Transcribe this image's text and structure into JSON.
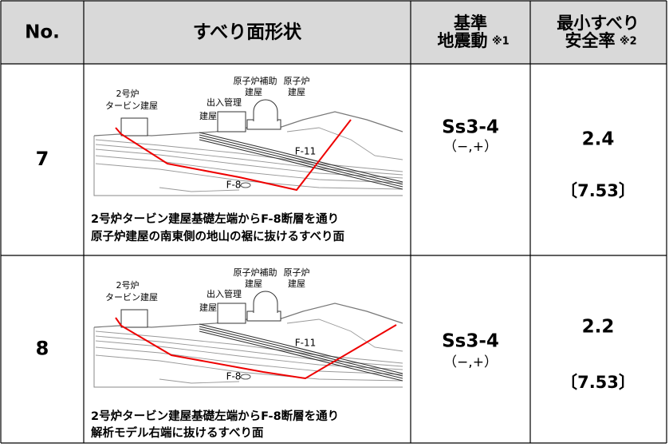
{
  "header": {
    "columns": [
      {
        "lines": [
          "No."
        ]
      },
      {
        "lines": [
          "すべり面形状"
        ]
      },
      {
        "lines": [
          "基準",
          "地震動"
        ],
        "note": "※1"
      },
      {
        "lines": [
          "最小すべり",
          "安全率"
        ],
        "note": "※2"
      }
    ]
  },
  "rows": [
    {
      "no": "7",
      "diagram": {
        "labels": [
          {
            "lines": [
              "2号炉",
              "タービン建屋"
            ]
          },
          {
            "lines": [
              "出入管理",
              "建屋"
            ]
          },
          {
            "lines": [
              "原子炉補助",
              "建屋"
            ]
          },
          {
            "lines": [
              "原子炉",
              "建屋"
            ]
          }
        ],
        "faults": [
          "F-11",
          "F-8"
        ]
      },
      "caption": [
        "2号炉タービン建屋基礎左端からF-8断層を通り",
        "原子炉建屋の南東側の地山の裾に抜けるすべり面"
      ],
      "ground_motion": [
        "Ss3-4",
        "（−,+）"
      ],
      "safety_factor": [
        "2.4",
        "〔7.53〕"
      ]
    },
    {
      "no": "8",
      "diagram": {
        "labels": [
          {
            "lines": [
              "2号炉",
              "タービン建屋"
            ]
          },
          {
            "lines": [
              "出入管理",
              "建屋"
            ]
          },
          {
            "lines": [
              "原子炉補助",
              "建屋"
            ]
          },
          {
            "lines": [
              "原子炉",
              "建屋"
            ]
          }
        ],
        "faults": [
          "F-11",
          "F-8"
        ]
      },
      "caption": [
        "2号炉タービン建屋基礎左端からF-8断層を通り",
        "解析モデル右端に抜けるすべり面"
      ],
      "ground_motion": [
        "Ss3-4",
        "（−,+）"
      ],
      "safety_factor": [
        "2.2",
        "〔7.53〕"
      ]
    }
  ]
}
